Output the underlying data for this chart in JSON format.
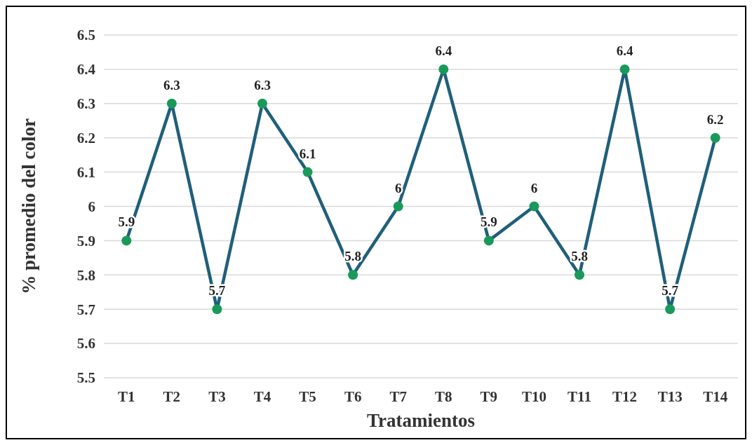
{
  "chart_data": {
    "type": "line",
    "xlabel": "Tratamientos",
    "ylabel": "% promedio del color",
    "categories": [
      "T1",
      "T2",
      "T3",
      "T4",
      "T5",
      "T6",
      "T7",
      "T8",
      "T9",
      "T10",
      "T11",
      "T12",
      "T13",
      "T14"
    ],
    "series": [
      {
        "color": "#1f5f7a",
        "values": [
          5.9,
          6.3,
          5.7,
          6.3,
          6.1,
          5.8,
          6.0,
          6.4,
          5.9,
          6.0,
          5.8,
          6.4,
          5.7,
          6.2
        ]
      }
    ],
    "marker": "circle",
    "line_style": "solid",
    "ylim": [
      5.5,
      6.5
    ],
    "yticks": [
      5.5,
      5.6,
      5.7,
      5.8,
      5.9,
      6,
      6.1,
      6.2,
      6.3,
      6.4,
      6.5
    ],
    "grid": "y",
    "data_labels": true
  }
}
